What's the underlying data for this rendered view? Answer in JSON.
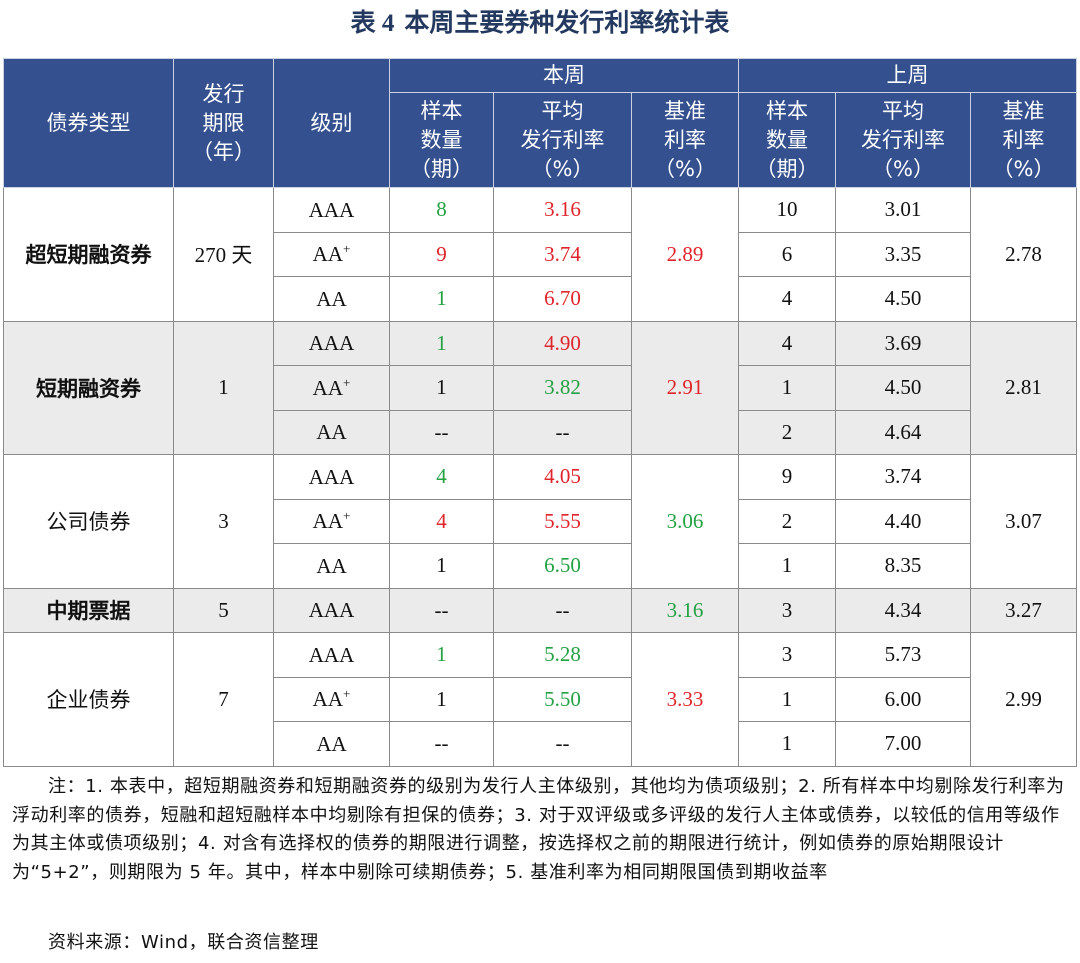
{
  "title": {
    "number": "表 4",
    "text": "本周主要券种发行利率统计表"
  },
  "header": {
    "type": "债券类型",
    "term_line1": "发行",
    "term_line2": "期限",
    "term_line3": "（年）",
    "grade": "级别",
    "this_week": "本周",
    "last_week": "上周",
    "count_l1": "样本",
    "count_l2": "数量",
    "count_l3": "（期）",
    "avg_l1": "平均",
    "avg_l2": "发行利率",
    "avg_l3": "（%）",
    "base_l1": "基准",
    "base_l2": "利率",
    "base_l3": "（%）"
  },
  "groups": [
    {
      "type": "超短期融资券",
      "term": "270 天",
      "this_base": "2.89",
      "last_base": "2.78",
      "rows": [
        {
          "grade": "AAA",
          "grade_sup": "",
          "tw_count": "8",
          "tw_rate": "3.16",
          "lw_count": "10",
          "lw_rate": "3.01"
        },
        {
          "grade": "AA",
          "grade_sup": "+",
          "tw_count": "9",
          "tw_rate": "3.74",
          "lw_count": "6",
          "lw_rate": "3.35"
        },
        {
          "grade": "AA",
          "grade_sup": "",
          "tw_count": "1",
          "tw_rate": "6.70",
          "lw_count": "4",
          "lw_rate": "4.50"
        }
      ]
    },
    {
      "type": "短期融资券",
      "term": "1",
      "this_base": "2.91",
      "last_base": "2.81",
      "rows": [
        {
          "grade": "AAA",
          "grade_sup": "",
          "tw_count": "1",
          "tw_rate": "4.90",
          "lw_count": "4",
          "lw_rate": "3.69"
        },
        {
          "grade": "AA",
          "grade_sup": "+",
          "tw_count": "1",
          "tw_rate": "3.82",
          "lw_count": "1",
          "lw_rate": "4.50"
        },
        {
          "grade": "AA",
          "grade_sup": "",
          "tw_count": "--",
          "tw_rate": "--",
          "lw_count": "2",
          "lw_rate": "4.64"
        }
      ]
    },
    {
      "type": "公司债券",
      "term": "3",
      "this_base": "3.06",
      "last_base": "3.07",
      "rows": [
        {
          "grade": "AAA",
          "grade_sup": "",
          "tw_count": "4",
          "tw_rate": "4.05",
          "lw_count": "9",
          "lw_rate": "3.74"
        },
        {
          "grade": "AA",
          "grade_sup": "+",
          "tw_count": "4",
          "tw_rate": "5.55",
          "lw_count": "2",
          "lw_rate": "4.40"
        },
        {
          "grade": "AA",
          "grade_sup": "",
          "tw_count": "1",
          "tw_rate": "6.50",
          "lw_count": "1",
          "lw_rate": "8.35"
        }
      ]
    },
    {
      "type": "中期票据",
      "term": "5",
      "this_base": "3.16",
      "last_base": "3.27",
      "rows": [
        {
          "grade": "AAA",
          "grade_sup": "",
          "tw_count": "--",
          "tw_rate": "--",
          "lw_count": "3",
          "lw_rate": "4.34"
        }
      ]
    },
    {
      "type": "企业债券",
      "term": "7",
      "this_base": "3.33",
      "last_base": "2.99",
      "rows": [
        {
          "grade": "AAA",
          "grade_sup": "",
          "tw_count": "1",
          "tw_rate": "5.28",
          "lw_count": "3",
          "lw_rate": "5.73"
        },
        {
          "grade": "AA",
          "grade_sup": "+",
          "tw_count": "1",
          "tw_rate": "5.50",
          "lw_count": "1",
          "lw_rate": "6.00"
        },
        {
          "grade": "AA",
          "grade_sup": "",
          "tw_count": "--",
          "tw_rate": "--",
          "lw_count": "1",
          "lw_rate": "7.00"
        }
      ]
    }
  ],
  "colors": {
    "up": "#e0242b",
    "down": "#24a243",
    "neutral": "#111111"
  },
  "note": "注：1. 本表中，超短期融资券和短期融资券的级别为发行人主体级别，其他均为债项级别；2. 所有样本中均剔除发行利率为浮动利率的债券，短融和超短融样本中均剔除有担保的债券；3. 对于双评级或多评级的发行人主体或债券，以较低的信用等级作为其主体或债项级别；4. 对含有选择权的债券的期限进行调整，按选择权之前的期限进行统计，例如债券的原始期限设计为“5+2”，则期限为 5 年。其中，样本中剔除可续期债券；5. 基准利率为相同期限国债到期收益率",
  "source": "资料来源：Wind，联合资信整理"
}
